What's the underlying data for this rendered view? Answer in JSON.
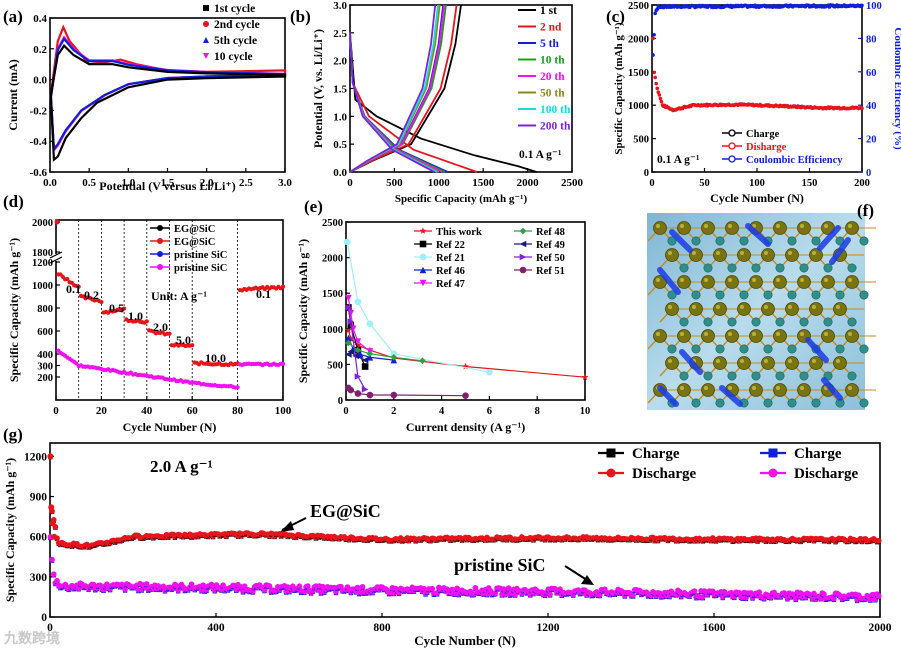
{
  "colors": {
    "black": "#000000",
    "red": "#e8141c",
    "blue": "#1020d8",
    "magenta": "#f010f0",
    "green": "#18a018",
    "olive": "#8a8a18",
    "cyan": "#10e0e0",
    "violet": "#8020e0",
    "lightcyan": "#a0f0f8",
    "purple": "#802070",
    "darkgreen": "#30a040"
  },
  "watermark": "九数跨境",
  "chart_data": [
    {
      "panel": "(a)",
      "type": "line",
      "xlabel": "Potential (V versus Li/Li⁺)",
      "ylabel": "Current (mA)",
      "xlim": [
        0,
        3.0
      ],
      "ylim": [
        -0.6,
        0.4
      ],
      "xticks": [
        "0.0",
        "0.5",
        "1.0",
        "1.5",
        "2.0",
        "2.5",
        "3.0"
      ],
      "yticks": [
        "-0.6",
        "-0.4",
        "-0.2",
        "0.0",
        "0.2",
        "0.4"
      ],
      "series": [
        {
          "name": "1st cycle",
          "color": "#000000",
          "marker": "square"
        },
        {
          "name": "2nd cycle",
          "color": "#e8141c",
          "marker": "circle"
        },
        {
          "name": "5th cycle",
          "color": "#1020d8",
          "marker": "triangle"
        },
        {
          "name": "10 cycle",
          "color": "#f010f0",
          "marker": "tri-down"
        }
      ],
      "curves": {
        "first_upper": [
          [
            0.01,
            -0.1
          ],
          [
            0.1,
            0.16
          ],
          [
            0.18,
            0.22
          ],
          [
            0.3,
            0.16
          ],
          [
            0.5,
            0.1
          ],
          [
            0.8,
            0.1
          ],
          [
            1.0,
            0.08
          ],
          [
            1.5,
            0.05
          ],
          [
            2.0,
            0.04
          ],
          [
            3.0,
            0.03
          ]
        ],
        "first_lower": [
          [
            3.0,
            0.02
          ],
          [
            2.0,
            0.01
          ],
          [
            1.5,
            0.0
          ],
          [
            1.0,
            -0.05
          ],
          [
            0.8,
            -0.1
          ],
          [
            0.6,
            -0.15
          ],
          [
            0.4,
            -0.25
          ],
          [
            0.2,
            -0.38
          ],
          [
            0.1,
            -0.5
          ],
          [
            0.05,
            -0.52
          ],
          [
            0.01,
            -0.1
          ]
        ],
        "second_upper": [
          [
            0.01,
            -0.1
          ],
          [
            0.1,
            0.25
          ],
          [
            0.17,
            0.34
          ],
          [
            0.25,
            0.25
          ],
          [
            0.5,
            0.1
          ],
          [
            0.8,
            0.12
          ],
          [
            0.9,
            0.13
          ],
          [
            1.1,
            0.1
          ],
          [
            1.5,
            0.06
          ],
          [
            2.0,
            0.05
          ],
          [
            3.0,
            0.06
          ]
        ],
        "second_lower": [
          [
            3.0,
            0.03
          ],
          [
            2.0,
            0.02
          ],
          [
            1.5,
            0.01
          ],
          [
            1.0,
            -0.03
          ],
          [
            0.7,
            -0.1
          ],
          [
            0.4,
            -0.2
          ],
          [
            0.2,
            -0.33
          ],
          [
            0.1,
            -0.42
          ],
          [
            0.05,
            -0.45
          ],
          [
            0.01,
            -0.1
          ]
        ]
      }
    },
    {
      "panel": "(b)",
      "type": "line",
      "xlabel": "Specific Capacity (mAh g⁻¹)",
      "ylabel": "Potential (V, vs. Li/Li⁺)",
      "xlim": [
        0,
        2500
      ],
      "ylim": [
        0,
        3.0
      ],
      "xticks": [
        "0",
        "500",
        "1000",
        "1500",
        "2000",
        "2500"
      ],
      "yticks": [
        "0.0",
        "0.5",
        "1.0",
        "1.5",
        "2.0",
        "2.5",
        "3.0"
      ],
      "annotation": "0.1 A g⁻¹",
      "series": [
        {
          "name": "1 st",
          "color": "#000000",
          "dis": 2100,
          "chg": 1250
        },
        {
          "name": "2 nd",
          "color": "#e8141c",
          "dis": 1430,
          "chg": 1200
        },
        {
          "name": "5 th",
          "color": "#1020d8",
          "dis": 1100,
          "chg": 1050
        },
        {
          "name": "10 th",
          "color": "#18a018",
          "dis": 1070,
          "chg": 1080
        },
        {
          "name": "20 th",
          "color": "#f010f0",
          "dis": 1040,
          "chg": 1060
        },
        {
          "name": "50 th",
          "color": "#8a8a18",
          "dis": 1000,
          "chg": 1010
        },
        {
          "name": "100 th",
          "color": "#10e0e0",
          "dis": 980,
          "chg": 990
        },
        {
          "name": "200 th",
          "color": "#8020e0",
          "dis": 950,
          "chg": 960
        }
      ]
    },
    {
      "panel": "(c)",
      "type": "scatter",
      "xlabel": "Cycle Number (N)",
      "ylabel": "Specific Capacity (mAh g⁻¹)",
      "y2label": "Coulombic Efficiency (%)",
      "xlim": [
        0,
        200
      ],
      "ylim": [
        0,
        2500
      ],
      "y2lim": [
        0,
        100
      ],
      "xticks": [
        "0",
        "50",
        "100",
        "150",
        "200"
      ],
      "yticks": [
        "0",
        "500",
        "1000",
        "1500",
        "2000",
        "2500"
      ],
      "y2ticks": [
        "0",
        "20",
        "40",
        "60",
        "80",
        "100"
      ],
      "annotation": "0.1 A g⁻¹",
      "series": [
        {
          "name": "Charge",
          "color": "#000000"
        },
        {
          "name": "Disharge",
          "color": "#e8141c"
        },
        {
          "name": "Coulombic Efficiency",
          "color": "#1020d8"
        }
      ],
      "capacity_profile": [
        [
          1,
          2000
        ],
        [
          2,
          1500
        ],
        [
          5,
          1250
        ],
        [
          10,
          1000
        ],
        [
          20,
          930
        ],
        [
          40,
          1000
        ],
        [
          80,
          1010
        ],
        [
          120,
          990
        ],
        [
          160,
          960
        ],
        [
          200,
          960
        ]
      ],
      "efficiency_profile": [
        [
          1,
          70
        ],
        [
          3,
          95
        ],
        [
          6,
          99
        ],
        [
          200,
          99.5
        ]
      ]
    },
    {
      "panel": "(d)",
      "type": "scatter",
      "xlabel": "Cycle Number (N)",
      "ylabel": "Specific Capacity (mAh g⁻¹)",
      "xlim": [
        0,
        100
      ],
      "ylim": [
        0,
        2000
      ],
      "y_break": [
        1200,
        1800
      ],
      "xticks": [
        "0",
        "20",
        "40",
        "60",
        "80",
        "100"
      ],
      "yticks": [
        "200",
        "300",
        "400",
        "600",
        "800",
        "1000",
        "1200",
        "1800",
        "2000"
      ],
      "unit_label": "Unit: A g⁻¹",
      "rate_labels": [
        "0.1",
        "0.2",
        "0.5",
        "1.0",
        "2.0",
        "5.0",
        "10.0",
        "0.1"
      ],
      "series": [
        {
          "name": "EG@SiC",
          "color": "#000000",
          "marker": "filled"
        },
        {
          "name": "EG@SiC",
          "color": "#e8141c",
          "marker": "filled"
        },
        {
          "name": "pristine SiC",
          "color": "#1020d8",
          "marker": "filled"
        },
        {
          "name": "pristine SiC",
          "color": "#f010f0",
          "marker": "filled"
        }
      ],
      "eg_steps": [
        [
          0,
          2000
        ],
        [
          1,
          1100
        ],
        [
          10,
          980
        ],
        [
          10,
          900
        ],
        [
          20,
          860
        ],
        [
          20,
          760
        ],
        [
          30,
          790
        ],
        [
          30,
          700
        ],
        [
          40,
          680
        ],
        [
          40,
          600
        ],
        [
          50,
          570
        ],
        [
          50,
          480
        ],
        [
          60,
          470
        ],
        [
          60,
          320
        ],
        [
          80,
          310
        ],
        [
          80,
          960
        ],
        [
          100,
          980
        ]
      ],
      "pristine_steps": [
        [
          0,
          900
        ],
        [
          1,
          430
        ],
        [
          10,
          300
        ],
        [
          20,
          270
        ],
        [
          30,
          240
        ],
        [
          40,
          210
        ],
        [
          50,
          180
        ],
        [
          60,
          150
        ],
        [
          70,
          130
        ],
        [
          80,
          110
        ],
        [
          80,
          310
        ],
        [
          100,
          310
        ]
      ]
    },
    {
      "panel": "(e)",
      "type": "scatter",
      "xlabel": "Current density (A g⁻¹)",
      "ylabel": "Specific Capacity (mAh g⁻¹)",
      "xlim": [
        0,
        10
      ],
      "ylim": [
        0,
        2500
      ],
      "xticks": [
        "0",
        "2",
        "4",
        "6",
        "8",
        "10"
      ],
      "yticks": [
        "0",
        "500",
        "1000",
        "1500",
        "2000",
        "2500"
      ],
      "series": [
        {
          "name": "This work",
          "color": "#e8141c",
          "marker": "star",
          "points": [
            [
              0.1,
              980
            ],
            [
              0.2,
              860
            ],
            [
              0.5,
              770
            ],
            [
              1,
              700
            ],
            [
              2,
              590
            ],
            [
              5,
              470
            ],
            [
              10,
              320
            ]
          ]
        },
        {
          "name": "Ref 22",
          "color": "#000000",
          "marker": "square",
          "points": [
            [
              0.1,
              1300
            ],
            [
              0.2,
              1050
            ],
            [
              0.5,
              700
            ],
            [
              0.8,
              470
            ]
          ]
        },
        {
          "name": "Ref 21",
          "color": "#a0f0f8",
          "marker": "circle",
          "points": [
            [
              0.05,
              2220
            ],
            [
              0.5,
              1380
            ],
            [
              1,
              1070
            ],
            [
              2,
              650
            ],
            [
              6,
              390
            ]
          ]
        },
        {
          "name": "Ref 46",
          "color": "#1020d8",
          "marker": "triangle",
          "points": [
            [
              0.1,
              870
            ],
            [
              0.3,
              720
            ],
            [
              0.6,
              640
            ],
            [
              1,
              600
            ],
            [
              2,
              560
            ]
          ]
        },
        {
          "name": "Ref 47",
          "color": "#f010f0",
          "marker": "tri-down",
          "points": [
            [
              0.1,
              1430
            ],
            [
              0.2,
              1220
            ],
            [
              0.3,
              1000
            ],
            [
              0.5,
              820
            ],
            [
              1,
              680
            ]
          ]
        },
        {
          "name": "Ref 48",
          "color": "#30a040",
          "marker": "diamond",
          "points": [
            [
              0.1,
              800
            ],
            [
              0.5,
              700
            ],
            [
              1,
              650
            ],
            [
              2,
              600
            ],
            [
              3.2,
              550
            ]
          ]
        },
        {
          "name": "Ref 49",
          "color": "#1a1a80",
          "marker": "tri-left",
          "points": [
            [
              0.1,
              640
            ],
            [
              0.2,
              680
            ],
            [
              0.4,
              620
            ],
            [
              0.8,
              560
            ]
          ]
        },
        {
          "name": "Ref 50",
          "color": "#8020e0",
          "marker": "tri-right",
          "points": [
            [
              0.1,
              1300
            ],
            [
              0.2,
              1100
            ],
            [
              0.5,
              330
            ],
            [
              0.8,
              150
            ]
          ]
        },
        {
          "name": "Ref 51",
          "color": "#802070",
          "marker": "circle",
          "points": [
            [
              0.1,
              170
            ],
            [
              0.2,
              140
            ],
            [
              0.5,
              90
            ],
            [
              1,
              70
            ],
            [
              2,
              70
            ],
            [
              5,
              60
            ]
          ]
        }
      ]
    },
    {
      "panel": "(g)",
      "type": "scatter",
      "xlabel": "Cycle Number (N)",
      "ylabel": "Specific Capacity (mAh g⁻¹)",
      "xlim": [
        0,
        2000
      ],
      "ylim": [
        0,
        1300
      ],
      "xticks": [
        "0",
        "400",
        "800",
        "1200",
        "1600",
        "2000"
      ],
      "yticks": [
        "0",
        "300",
        "600",
        "900",
        "1200"
      ],
      "annotation": "2.0 A g⁻¹",
      "labels": [
        "EG@SiC",
        "pristine SiC"
      ],
      "series": [
        {
          "name": "Charge",
          "color": "#000000"
        },
        {
          "name": "Discharge",
          "color": "#e8141c"
        },
        {
          "name": "Charge",
          "color": "#1020d8"
        },
        {
          "name": "Discharge",
          "color": "#f010f0"
        }
      ],
      "eg_profile": [
        [
          1,
          1200
        ],
        [
          5,
          800
        ],
        [
          20,
          550
        ],
        [
          100,
          530
        ],
        [
          200,
          600
        ],
        [
          500,
          620
        ],
        [
          800,
          580
        ],
        [
          1200,
          590
        ],
        [
          1600,
          580
        ],
        [
          2000,
          575
        ]
      ],
      "pristine_profile": [
        [
          1,
          600
        ],
        [
          5,
          420
        ],
        [
          10,
          280
        ],
        [
          30,
          230
        ],
        [
          400,
          220
        ],
        [
          800,
          200
        ],
        [
          1200,
          190
        ],
        [
          1600,
          170
        ],
        [
          2000,
          150
        ]
      ]
    }
  ],
  "panel_f": {
    "label": "(f)"
  }
}
